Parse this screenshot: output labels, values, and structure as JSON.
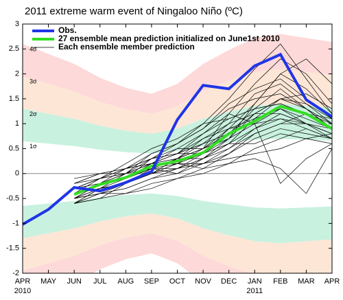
{
  "chart_data": {
    "type": "line",
    "title": "2011 extreme warm event of Ningaloo Niño (ºC)",
    "categories": [
      "APR",
      "MAY",
      "JUN",
      "JUL",
      "AUG",
      "SEP",
      "OCT",
      "NOV",
      "DEC",
      "JAN",
      "FEB",
      "MAR",
      "APR"
    ],
    "x_year_labels": [
      "2010",
      null,
      null,
      null,
      null,
      null,
      null,
      null,
      null,
      "2011",
      null,
      null,
      null
    ],
    "ylim": [
      -2,
      3
    ],
    "yticks": [
      -2,
      -1.5,
      -1,
      -0.5,
      0,
      0.5,
      1,
      1.5,
      2,
      2.5,
      3
    ],
    "sigma": [
      0.65,
      0.6,
      0.55,
      0.48,
      0.43,
      0.4,
      0.45,
      0.55,
      0.62,
      0.68,
      0.7,
      0.68,
      0.66
    ],
    "sigma_labels": [
      "1σ",
      "2σ",
      "3σ",
      "4σ"
    ],
    "band_colors": [
      "#c9f1df",
      "#fde6d6",
      "#fdd9d9"
    ],
    "series": [
      {
        "name": "Obs.",
        "color": "#1f35e6",
        "width": 4,
        "values": [
          -1.02,
          -0.72,
          -0.28,
          -0.35,
          -0.18,
          0.04,
          1.08,
          1.77,
          1.7,
          2.16,
          2.39,
          1.48,
          1.14
        ]
      },
      {
        "name": "27 ensemble mean prediction initialized on June1st 2010",
        "color": "#33dd22",
        "width": 4,
        "values": [
          null,
          null,
          -0.42,
          -0.22,
          -0.08,
          0.15,
          0.25,
          0.42,
          0.8,
          1.05,
          1.35,
          1.2,
          0.9
        ]
      }
    ],
    "members": {
      "name": "Each ensemble member prediction",
      "color": "#000000",
      "width": 0.7,
      "values_list": [
        [
          null,
          null,
          -0.3,
          -0.1,
          0.1,
          0.3,
          0.6,
          1.0,
          1.5,
          2.1,
          2.6,
          1.9,
          1.2
        ],
        [
          null,
          null,
          -0.5,
          -0.3,
          -0.2,
          0.0,
          0.2,
          0.5,
          1.2,
          1.8,
          2.3,
          2.0,
          1.4
        ],
        [
          null,
          null,
          -0.6,
          -0.4,
          -0.3,
          -0.1,
          0.1,
          0.4,
          0.9,
          1.4,
          2.0,
          1.7,
          1.2
        ],
        [
          null,
          null,
          -0.4,
          -0.3,
          0.0,
          0.2,
          0.3,
          0.7,
          1.0,
          1.6,
          1.8,
          1.4,
          1.0
        ],
        [
          null,
          null,
          -0.2,
          0.0,
          0.1,
          0.2,
          0.4,
          0.6,
          0.8,
          1.2,
          1.5,
          1.3,
          0.9
        ],
        [
          null,
          null,
          -0.5,
          -0.2,
          -0.1,
          0.1,
          0.0,
          0.3,
          0.5,
          0.9,
          1.1,
          1.0,
          0.8
        ],
        [
          null,
          null,
          -0.6,
          -0.5,
          -0.4,
          -0.2,
          -0.1,
          0.1,
          0.4,
          0.7,
          0.9,
          0.8,
          0.7
        ],
        [
          null,
          null,
          -0.3,
          -0.2,
          -0.1,
          0.3,
          0.5,
          0.5,
          0.7,
          1.0,
          1.3,
          1.1,
          0.9
        ],
        [
          null,
          null,
          -0.4,
          -0.1,
          0.0,
          0.4,
          0.6,
          0.9,
          1.3,
          1.5,
          1.6,
          1.3,
          1.0
        ],
        [
          null,
          null,
          -0.5,
          -0.3,
          -0.2,
          0.0,
          0.1,
          0.2,
          0.3,
          0.4,
          0.5,
          0.7,
          0.8
        ],
        [
          null,
          null,
          -0.2,
          -0.1,
          0.2,
          0.5,
          0.7,
          1.0,
          1.1,
          1.3,
          1.4,
          1.2,
          0.9
        ],
        [
          null,
          null,
          -0.6,
          -0.4,
          -0.4,
          -0.3,
          -0.1,
          0.0,
          0.2,
          0.5,
          0.7,
          0.9,
          0.7
        ],
        [
          null,
          null,
          -0.4,
          -0.2,
          0.0,
          0.1,
          0.3,
          0.6,
          1.0,
          1.2,
          1.2,
          1.0,
          0.8
        ],
        [
          null,
          null,
          -0.5,
          -0.4,
          -0.2,
          0.0,
          0.3,
          0.3,
          0.6,
          1.1,
          1.5,
          1.6,
          1.3
        ],
        [
          null,
          null,
          -0.3,
          -0.2,
          -0.1,
          0.1,
          0.2,
          0.2,
          0.4,
          0.8,
          1.0,
          1.2,
          1.1
        ],
        [
          null,
          null,
          -0.1,
          0.0,
          0.1,
          0.3,
          0.4,
          0.4,
          0.6,
          0.6,
          0.8,
          0.7,
          0.6
        ],
        [
          null,
          null,
          -0.6,
          -0.3,
          -0.1,
          0.2,
          0.3,
          0.5,
          0.8,
          1.3,
          1.7,
          1.3,
          0.9
        ],
        [
          null,
          null,
          -0.4,
          -0.3,
          -0.2,
          0.1,
          0.1,
          0.3,
          0.6,
          0.9,
          1.2,
          1.0,
          0.7
        ],
        [
          null,
          null,
          -0.5,
          -0.2,
          0.0,
          0.2,
          0.4,
          0.8,
          1.2,
          1.0,
          -0.2,
          0.3,
          0.6
        ],
        [
          null,
          null,
          -0.3,
          -0.1,
          0.0,
          0.2,
          0.2,
          0.1,
          0.2,
          0.3,
          0.1,
          -0.4,
          0.5
        ],
        [
          null,
          null,
          -0.6,
          -0.5,
          -0.2,
          0.0,
          0.2,
          0.4,
          0.7,
          1.4,
          2.0,
          2.3,
          1.8
        ],
        [
          null,
          null,
          -0.4,
          -0.2,
          -0.1,
          0.1,
          0.3,
          0.5,
          0.9,
          1.1,
          1.3,
          1.0,
          0.8
        ],
        [
          null,
          null,
          -0.2,
          0.0,
          0.0,
          0.3,
          0.4,
          0.7,
          0.9,
          1.0,
          1.1,
          0.9,
          0.7
        ],
        [
          null,
          null,
          -0.5,
          -0.4,
          -0.3,
          -0.1,
          0.0,
          0.2,
          0.5,
          0.8,
          1.0,
          1.0,
          0.9
        ],
        [
          null,
          null,
          -0.3,
          -0.1,
          0.1,
          0.2,
          0.5,
          0.8,
          1.1,
          1.3,
          1.4,
          1.2,
          1.0
        ],
        [
          null,
          null,
          -0.6,
          -0.3,
          -0.2,
          0.0,
          0.1,
          0.3,
          0.7,
          1.2,
          1.5,
          1.4,
          1.1
        ],
        [
          null,
          null,
          -0.4,
          -0.2,
          0.1,
          0.4,
          0.6,
          0.9,
          1.4,
          1.7,
          1.9,
          1.5,
          1.1
        ]
      ]
    }
  }
}
